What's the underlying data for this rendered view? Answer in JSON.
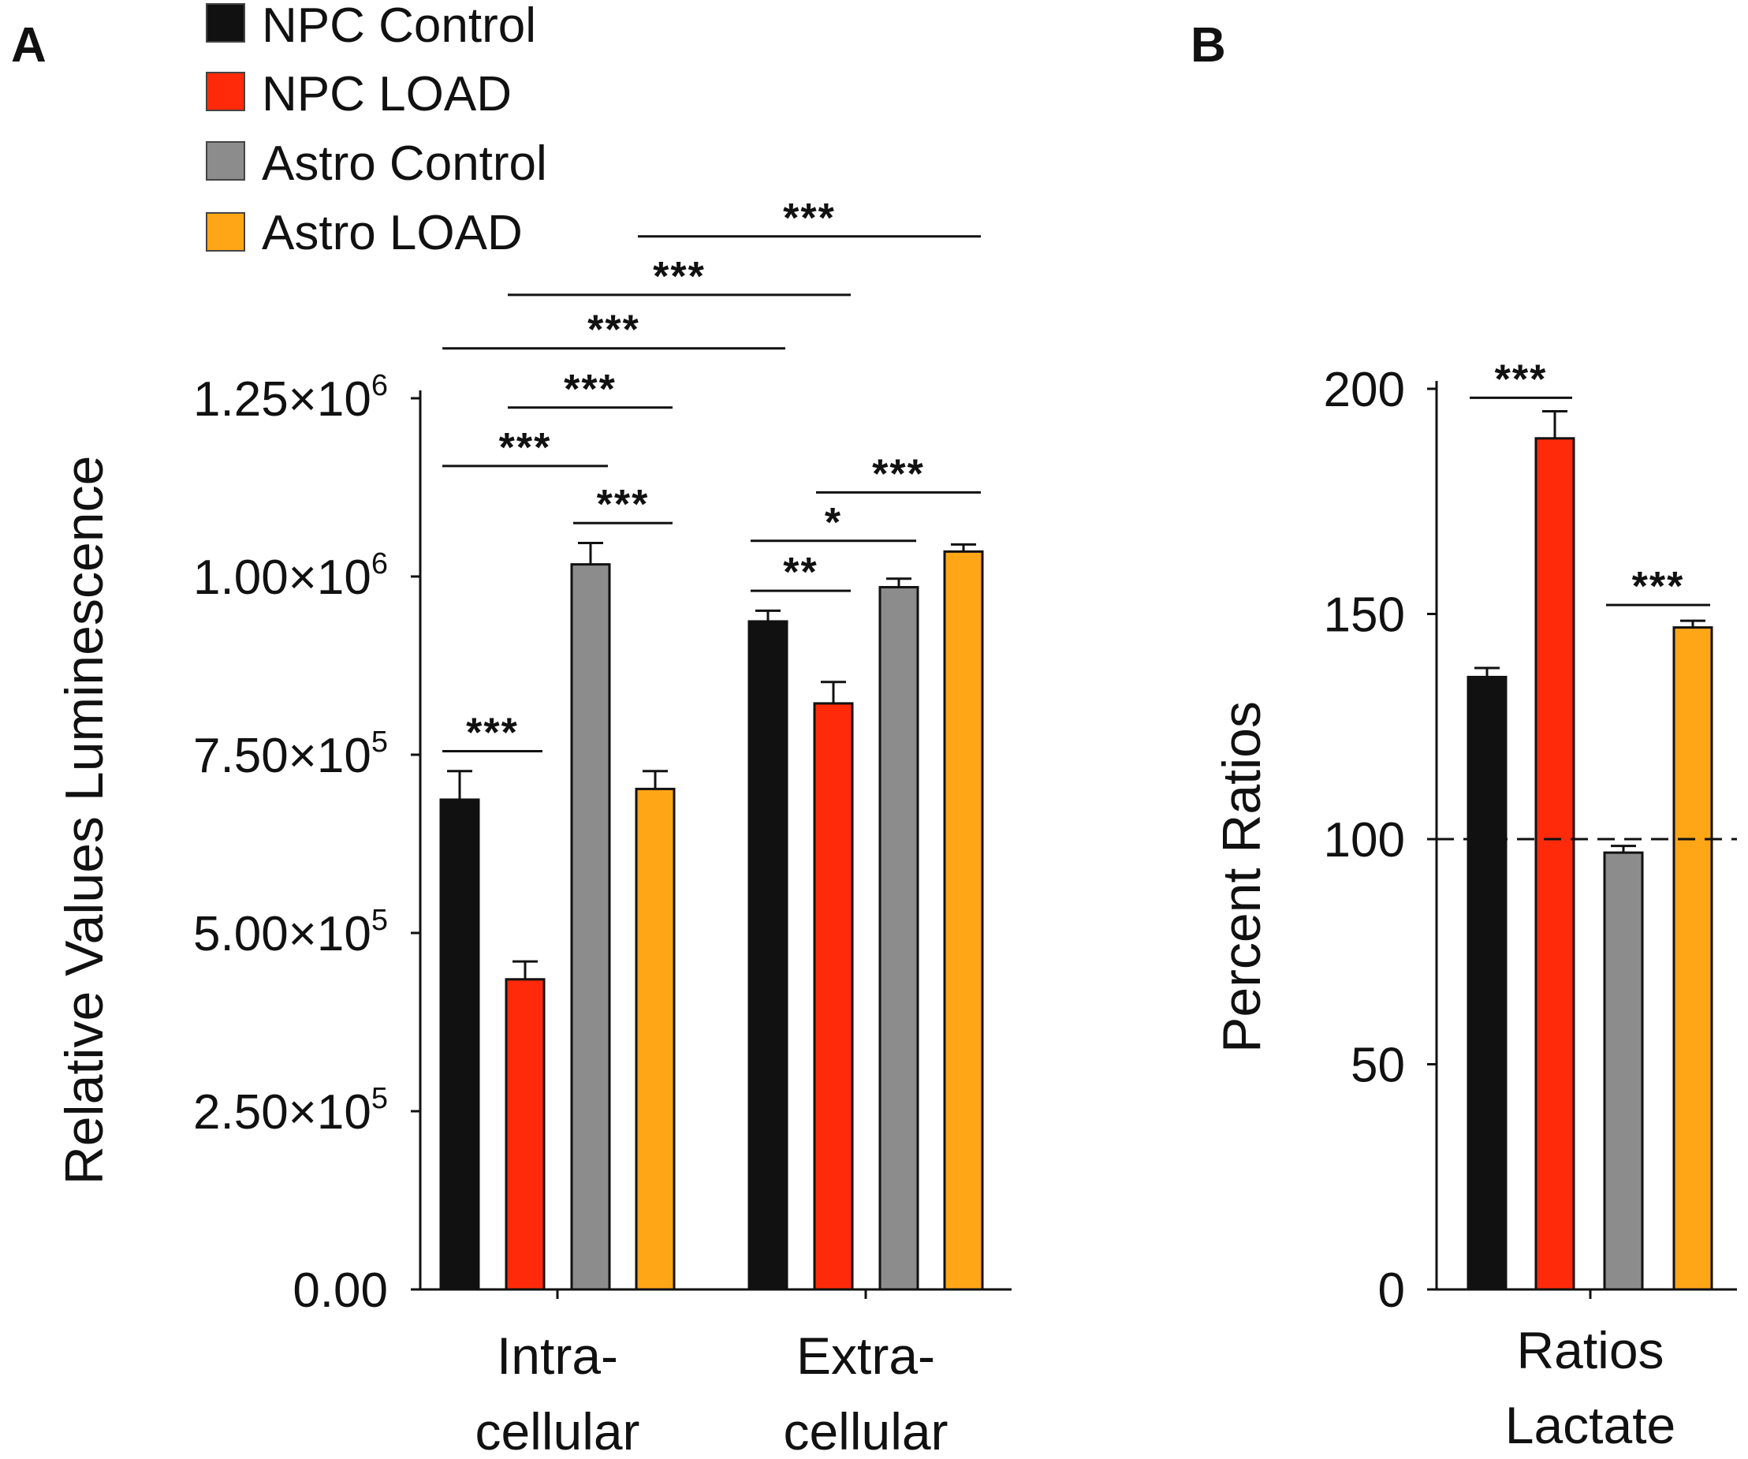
{
  "panel_labels": {
    "a": "A",
    "b": "B"
  },
  "legend": [
    {
      "label": "NPC Control",
      "color": "#111111"
    },
    {
      "label": "NPC LOAD",
      "color": "#ff2a0a"
    },
    {
      "label": "Astro Control",
      "color": "#8c8c8c"
    },
    {
      "label": "Astro LOAD",
      "color": "#ffa616"
    }
  ],
  "chart_data": [
    {
      "panel": "A",
      "type": "bar",
      "ylabel": "Relative Values Luminescence",
      "ylim": [
        0,
        1250000
      ],
      "yticks": [
        {
          "value": 0,
          "label": "0.00",
          "exp": ""
        },
        {
          "value": 250000,
          "label": "2.50×10",
          "exp": "5"
        },
        {
          "value": 500000,
          "label": "5.00×10",
          "exp": "5"
        },
        {
          "value": 750000,
          "label": "7.50×10",
          "exp": "5"
        },
        {
          "value": 1000000,
          "label": "1.00×10",
          "exp": "6"
        },
        {
          "value": 1250000,
          "label": "1.25×10",
          "exp": "6"
        }
      ],
      "categories": [
        {
          "line1": "Intra-",
          "line2": "cellular"
        },
        {
          "line1": "Extra-",
          "line2": "cellular"
        }
      ],
      "series": [
        {
          "name": "NPC Control",
          "values": [
            687000,
            937000
          ],
          "errors": [
            40000,
            15000
          ]
        },
        {
          "name": "NPC LOAD",
          "values": [
            435000,
            822000
          ],
          "errors": [
            25000,
            30000
          ]
        },
        {
          "name": "Astro Control",
          "values": [
            1017000,
            985000
          ],
          "errors": [
            30000,
            12000
          ]
        },
        {
          "name": "Astro LOAD",
          "values": [
            702000,
            1035000
          ],
          "errors": [
            25000,
            10000
          ]
        }
      ],
      "significance": [
        {
          "from": [
            0,
            0
          ],
          "to": [
            0,
            1
          ],
          "label": "***",
          "y": 755000
        },
        {
          "from": [
            0,
            2
          ],
          "to": [
            0,
            3
          ],
          "label": "***",
          "y": 1075000
        },
        {
          "from": [
            0,
            0
          ],
          "to": [
            0,
            2
          ],
          "label": "***",
          "y": 1155000
        },
        {
          "from": [
            0,
            1
          ],
          "to": [
            0,
            3
          ],
          "label": "***",
          "y": 1237000
        },
        {
          "from": [
            1,
            0
          ],
          "to": [
            1,
            1
          ],
          "label": "**",
          "y": 980000
        },
        {
          "from": [
            1,
            0
          ],
          "to": [
            1,
            2
          ],
          "label": "*",
          "y": 1050000
        },
        {
          "from": [
            1,
            1
          ],
          "to": [
            1,
            3
          ],
          "label": "***",
          "y": 1118000
        },
        {
          "from": [
            0,
            0
          ],
          "to": [
            1,
            0
          ],
          "label": "***",
          "y": 1320000
        },
        {
          "from": [
            0,
            1
          ],
          "to": [
            1,
            1
          ],
          "label": "***",
          "y": 1395000
        },
        {
          "from": [
            0,
            3
          ],
          "to": [
            1,
            3
          ],
          "label": "***",
          "y": 1477000
        }
      ]
    },
    {
      "panel": "B",
      "type": "bar",
      "ylabel": "Percent Ratios",
      "ylim": [
        0,
        200
      ],
      "yticks": [
        {
          "value": 0,
          "label": "0"
        },
        {
          "value": 50,
          "label": "50"
        },
        {
          "value": 100,
          "label": "100"
        },
        {
          "value": 150,
          "label": "150"
        },
        {
          "value": 200,
          "label": "200"
        }
      ],
      "categories": [
        {
          "line1": "Ratios",
          "line2": "Lactate"
        }
      ],
      "reference_line": 100,
      "series": [
        {
          "name": "NPC Control",
          "values": [
            136
          ],
          "errors": [
            2
          ]
        },
        {
          "name": "NPC LOAD",
          "values": [
            189
          ],
          "errors": [
            6
          ]
        },
        {
          "name": "Astro Control",
          "values": [
            97
          ],
          "errors": [
            1.5
          ]
        },
        {
          "name": "Astro LOAD",
          "values": [
            147
          ],
          "errors": [
            1.5
          ]
        }
      ],
      "significance": [
        {
          "from": [
            0,
            0
          ],
          "to": [
            0,
            1
          ],
          "label": "***",
          "y": 198
        },
        {
          "from": [
            0,
            2
          ],
          "to": [
            0,
            3
          ],
          "label": "***",
          "y": 152
        }
      ]
    }
  ]
}
